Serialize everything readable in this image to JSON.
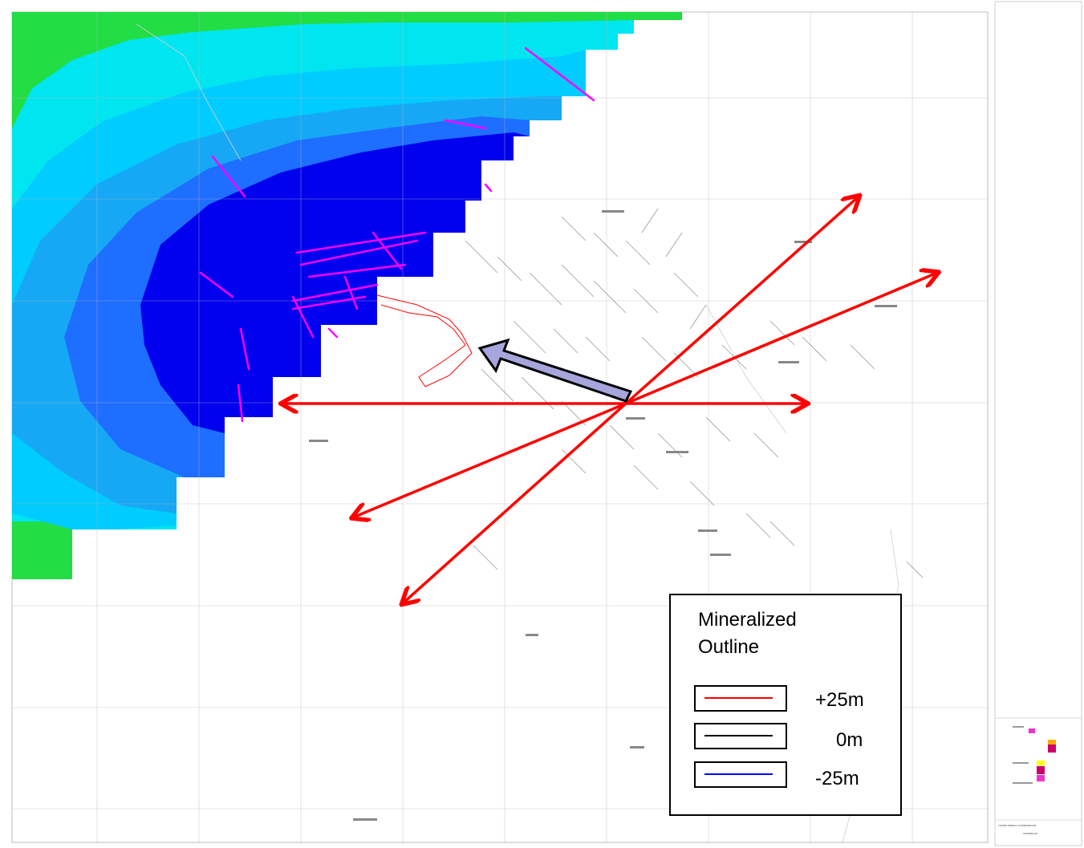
{
  "legend": {
    "title_line1": "Mineralized",
    "title_line2": "Outline",
    "items": [
      {
        "label": "+25m",
        "color": "#ff0000"
      },
      {
        "label": "0m",
        "color": "#000000"
      },
      {
        "label": "-25m",
        "color": "#0000ff"
      }
    ]
  },
  "colors": {
    "contour_dark": "#0000ee",
    "contour_mid": "#1e6eff",
    "contour_light": "#00e0ff",
    "contour_green": "#22dd44",
    "drillhole": "#ff00ff",
    "arrow_red": "#ff0000",
    "arrow_blue": "#a6a6dd"
  },
  "title_block": {
    "company": "TOWER ENERGY CORPORATION",
    "project": "WATERBURY"
  }
}
